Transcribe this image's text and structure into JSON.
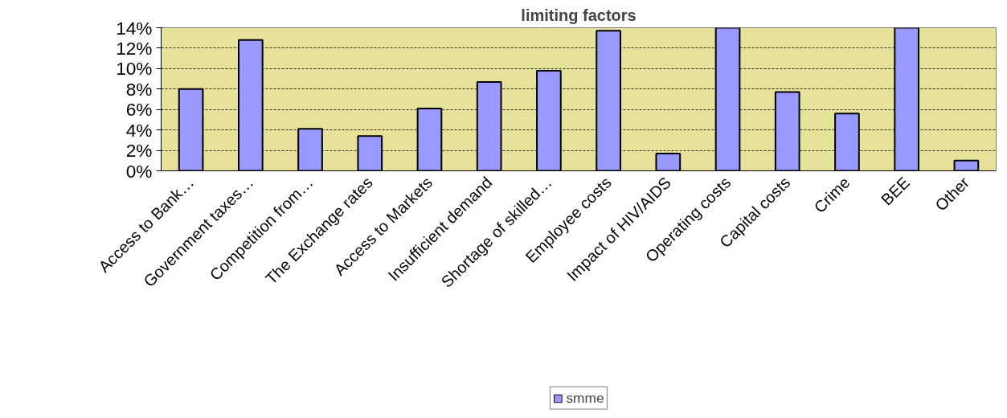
{
  "chart_data": {
    "type": "bar",
    "title": "limiting factors",
    "categories": [
      "Access to Bank…",
      "Government taxes…",
      "Competition from…",
      "The Exchange rates",
      "Access to Markets",
      "Insufficient demand",
      "Shortage of skilled…",
      "Employee costs",
      "Impact of HIV/AIDS",
      "Operating costs",
      "Capital costs",
      "Crime",
      "BEE",
      "Other"
    ],
    "series": [
      {
        "name": "smme",
        "color": "#9999ff",
        "values": [
          8.0,
          12.8,
          4.1,
          3.4,
          6.1,
          8.7,
          9.8,
          13.7,
          1.7,
          14,
          7.7,
          5.6,
          14,
          1.0
        ]
      }
    ],
    "ylim": [
      0,
      14
    ],
    "yticks": [
      {
        "value": 0,
        "label": "0%"
      },
      {
        "value": 2,
        "label": "2%"
      },
      {
        "value": 4,
        "label": "4%"
      },
      {
        "value": 6,
        "label": "6%"
      },
      {
        "value": 8,
        "label": "8%"
      },
      {
        "value": 10,
        "label": "10%"
      },
      {
        "value": 12,
        "label": "12%"
      },
      {
        "value": 14,
        "label": "14%"
      }
    ],
    "grid": "y",
    "legend": "bottom"
  }
}
